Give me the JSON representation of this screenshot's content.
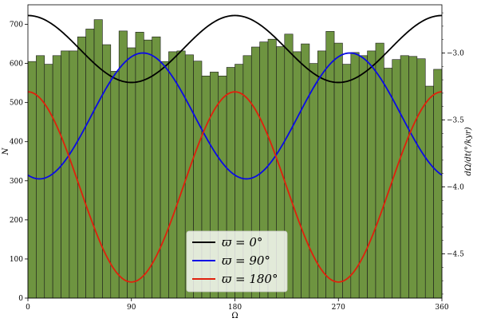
{
  "chart_data": {
    "type": "bar",
    "xlabel": "Ω",
    "ylabel_left": "N",
    "ylabel_right": "dΩ/dt(°/kyr)",
    "xlim": [
      0,
      360
    ],
    "ylim_left": [
      0,
      750
    ],
    "ylim_right": [
      -4.83,
      -2.64
    ],
    "x_ticks": [
      0,
      90,
      180,
      270,
      360
    ],
    "x_tick_labels": [
      "0",
      "90",
      "180",
      "270",
      "360"
    ],
    "y_left_ticks": [
      0,
      100,
      200,
      300,
      400,
      500,
      600,
      700
    ],
    "y_left_tick_labels": [
      "0",
      "100",
      "200",
      "300",
      "400",
      "500",
      "600",
      "700"
    ],
    "y_right_ticks": [
      -3.0,
      -3.5,
      -4.0,
      -4.5
    ],
    "y_right_tick_labels": [
      "−3.0",
      "−3.5",
      "−4.0",
      "−4.5"
    ],
    "histogram": {
      "bin_width": 7.2,
      "counts": [
        605,
        620,
        598,
        620,
        632,
        632,
        668,
        688,
        712,
        648,
        580,
        683,
        640,
        680,
        660,
        668,
        605,
        630,
        632,
        622,
        606,
        568,
        578,
        568,
        590,
        598,
        620,
        642,
        655,
        662,
        643,
        675,
        630,
        650,
        600,
        632,
        682,
        652,
        598,
        628,
        620,
        632,
        652,
        588,
        610,
        620,
        618,
        612,
        542,
        585
      ],
      "color": "#6e9440"
    },
    "series": [
      {
        "name": "ϖ = 0°",
        "color": "#000000",
        "amplitude": 0.25,
        "offset": -2.97,
        "phase_deg": 0,
        "period_deg": 180
      },
      {
        "name": "ϖ = 90°",
        "color": "#0a0ae6",
        "amplitude": 0.47,
        "offset": -3.47,
        "phase_deg": 100,
        "period_deg": 180
      },
      {
        "name": "ϖ = 180°",
        "color": "#e0200c",
        "amplitude": 0.71,
        "offset": -4.0,
        "phase_deg": 180,
        "period_deg": 180
      }
    ],
    "legend_position": "lower-center",
    "grid": false
  }
}
